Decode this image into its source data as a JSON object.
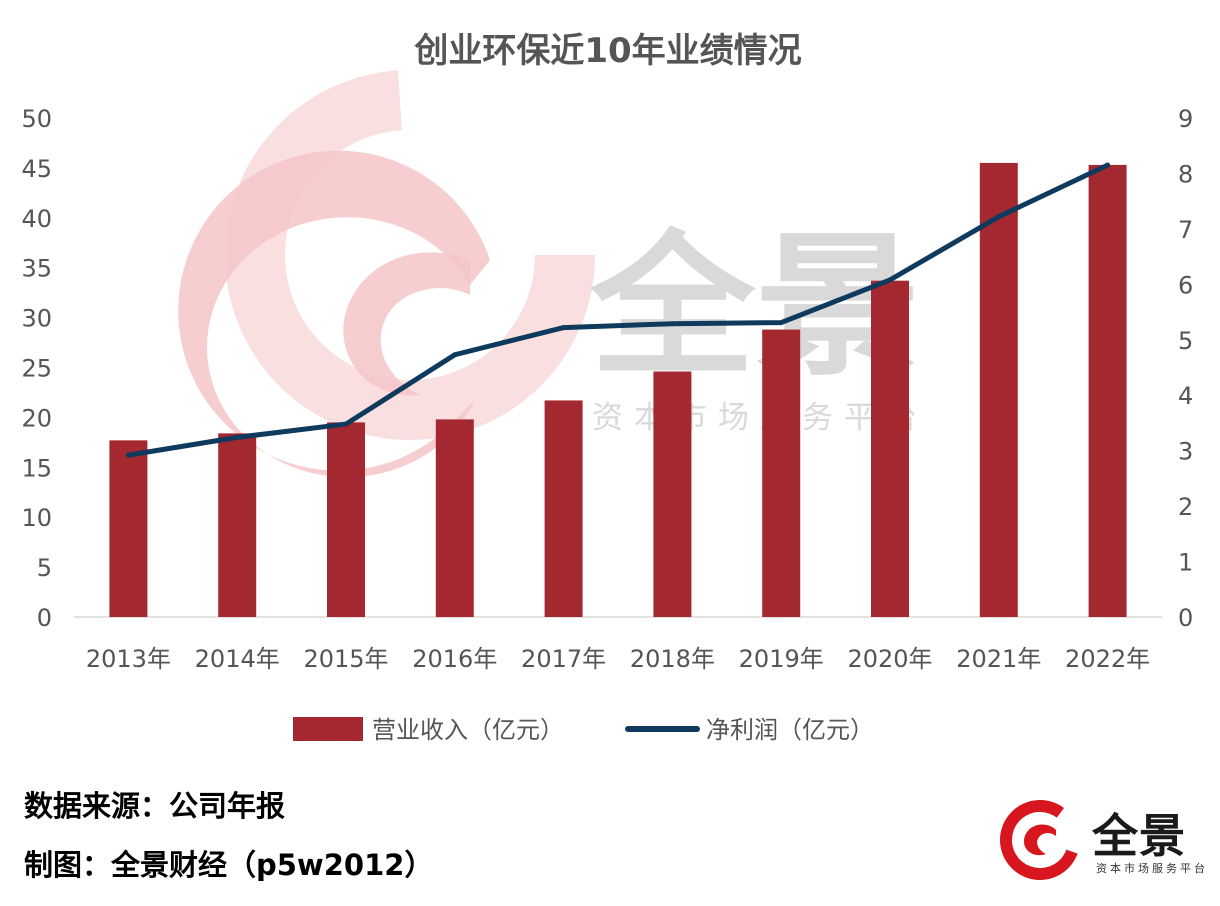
{
  "colors": {
    "bar": "#A4282F",
    "line": "#0E3A5E",
    "text": "#555555",
    "watermark_red": "#F6C5C8",
    "watermark_gray": "#D9D9D9",
    "logo_red": "#D7161E"
  },
  "watermark": {
    "brand": "全景",
    "tagline": "资本市场服务平台"
  },
  "footer": {
    "source": "数据来源：公司年报",
    "credit": "制图：全景财经（p5w2012）"
  },
  "logo": {
    "brand": "全景",
    "tagline": "资本市场服务平台"
  },
  "chart_data": {
    "type": "bar+line",
    "title": "创业环保近10年业绩情况",
    "categories": [
      "2013年",
      "2014年",
      "2015年",
      "2016年",
      "2017年",
      "2018年",
      "2019年",
      "2020年",
      "2021年",
      "2022年"
    ],
    "series": [
      {
        "name": "营业收入（亿元）",
        "type": "bar",
        "axis": "left",
        "values": [
          17.7,
          18.4,
          19.5,
          19.8,
          21.7,
          24.6,
          28.8,
          33.7,
          45.5,
          45.3
        ]
      },
      {
        "name": "净利润（亿元）",
        "type": "line",
        "axis": "right",
        "values": [
          2.92,
          3.24,
          3.48,
          4.73,
          5.22,
          5.29,
          5.31,
          6.08,
          7.22,
          8.15
        ]
      }
    ],
    "y_left": {
      "min": 0,
      "max": 50,
      "step": 5,
      "ticks": [
        "0",
        "5",
        "10",
        "15",
        "20",
        "25",
        "30",
        "35",
        "40",
        "45",
        "50"
      ]
    },
    "y_right": {
      "min": 0,
      "max": 9,
      "step": 1,
      "ticks": [
        "0",
        "1",
        "2",
        "3",
        "4",
        "5",
        "6",
        "7",
        "8",
        "9"
      ]
    },
    "grid": false,
    "legend_position": "bottom"
  }
}
